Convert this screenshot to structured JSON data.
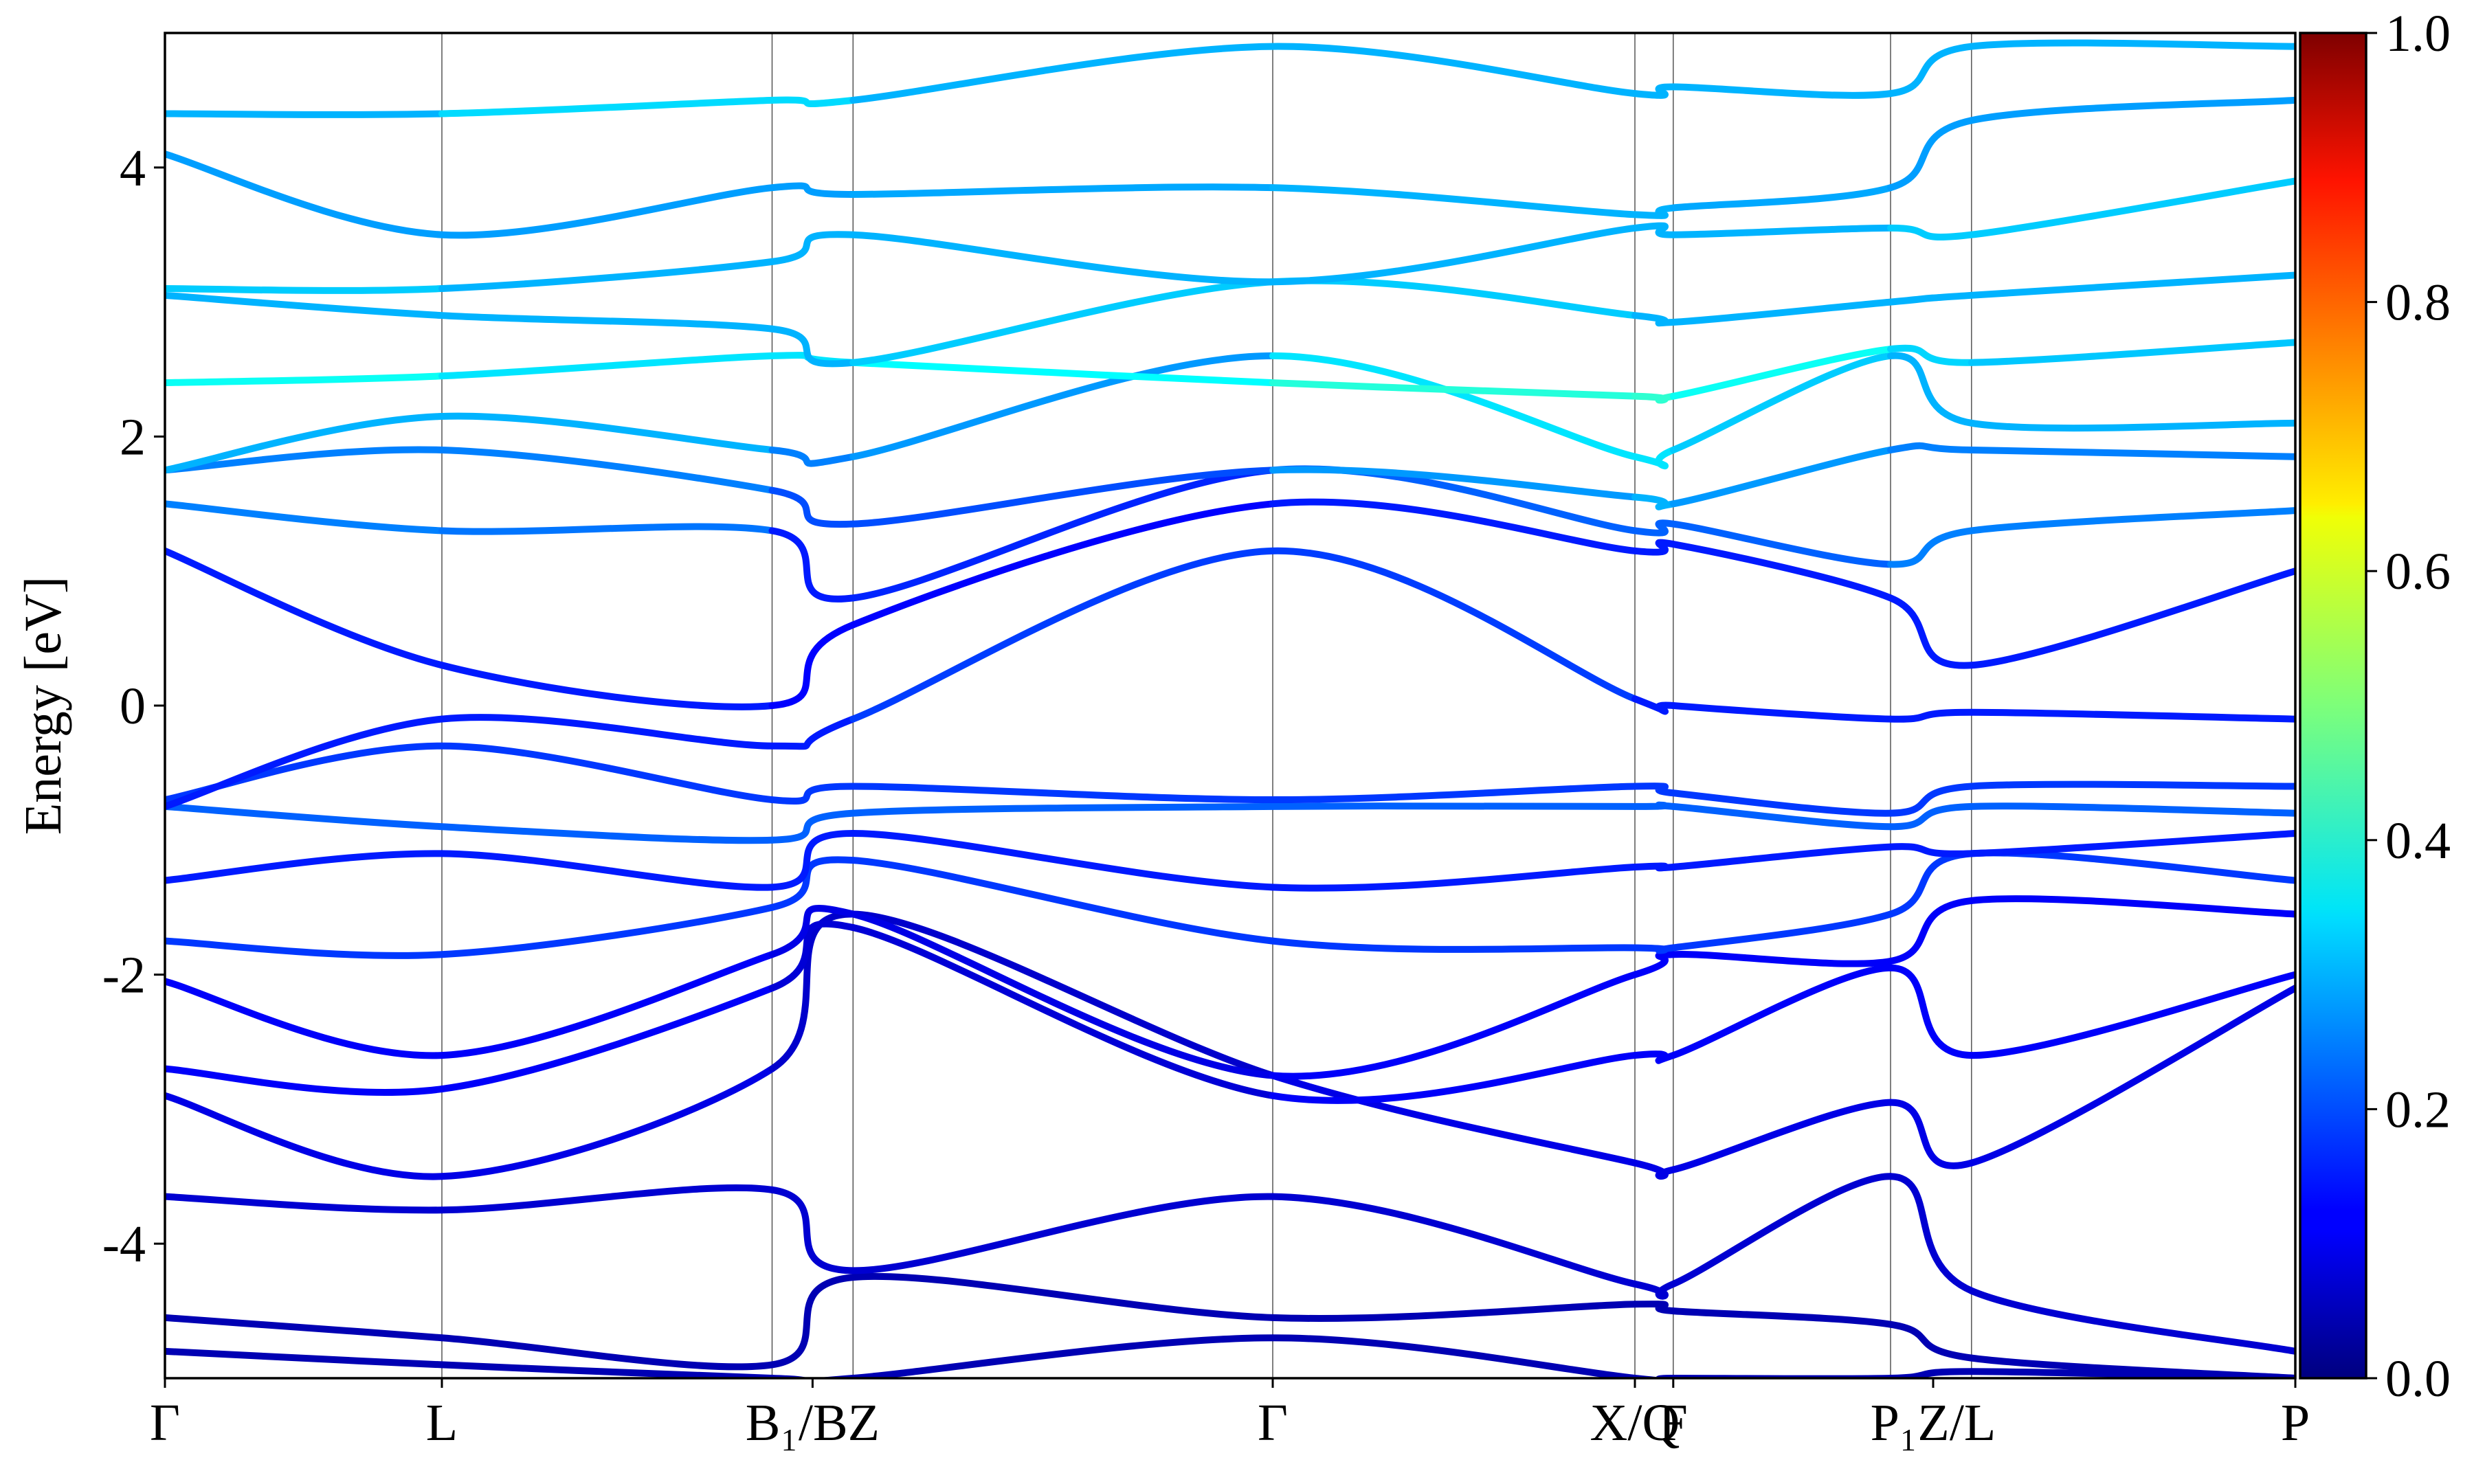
{
  "chart_data": {
    "type": "line",
    "ylabel": "Energy [eV]",
    "ylim": [
      -5,
      5
    ],
    "y_ticks": [
      "-4",
      "-2",
      "0",
      "2",
      "4"
    ],
    "y_tick_values": [
      -4,
      -2,
      0,
      2,
      4
    ],
    "x_ticks": [
      "Γ",
      "L",
      "B₁/BZ",
      "Γ",
      "X/Q",
      "F",
      "P₁Z/L",
      "P"
    ],
    "kpoints": [
      0,
      0.13,
      0.285,
      0.323,
      0.52,
      0.69,
      0.708,
      0.81,
      0.848,
      1.0
    ],
    "grid": "vertical lines at high-symmetry k-points",
    "colorbar": {
      "colormap": "jet",
      "range": [
        0.0,
        1.0
      ],
      "tick_labels": [
        "0.0",
        "0.2",
        "0.4",
        "0.6",
        "0.8",
        "1.0"
      ],
      "tick_values": [
        0.0,
        0.2,
        0.4,
        0.6,
        0.8,
        1.0
      ]
    },
    "series": [
      {
        "x": [
          0,
          0.13,
          0.285,
          0.323,
          0.52,
          0.69,
          0.708,
          0.81,
          0.848,
          1.0
        ],
        "y": [
          -4.55,
          -4.7,
          -4.9,
          -4.25,
          -4.55,
          -4.45,
          -4.5,
          -4.6,
          -4.85,
          -5.0
        ],
        "w": [
          0.05,
          0.05,
          0.05,
          0.05,
          0.05,
          0.05,
          0.05,
          0.05,
          0.05,
          0.05
        ]
      },
      {
        "x": [
          0,
          0.13,
          0.285,
          0.323,
          0.52,
          0.69,
          0.708,
          0.81,
          0.848,
          1.0
        ],
        "y": [
          -3.65,
          -3.75,
          -3.6,
          -4.2,
          -3.65,
          -4.3,
          -4.3,
          -3.5,
          -4.35,
          -4.8
        ],
        "w": [
          0.08,
          0.08,
          0.08,
          0.08,
          0.08,
          0.08,
          0.08,
          0.08,
          0.08,
          0.08
        ]
      },
      {
        "x": [
          0,
          0.13,
          0.285,
          0.323,
          0.52,
          0.69,
          0.708,
          0.81,
          0.848,
          1.0
        ],
        "y": [
          -2.9,
          -3.5,
          -2.7,
          -1.55,
          -2.75,
          -3.4,
          -3.45,
          -2.95,
          -3.4,
          -2.1
        ],
        "w": [
          0.1,
          0.1,
          0.1,
          0.05,
          0.1,
          0.1,
          0.1,
          0.1,
          0.1,
          0.1
        ]
      },
      {
        "x": [
          0,
          0.13,
          0.285,
          0.323,
          0.52,
          0.69,
          0.708,
          0.81,
          0.848,
          1.0
        ],
        "y": [
          -2.7,
          -2.85,
          -2.1,
          -1.65,
          -2.9,
          -2.6,
          -2.6,
          -1.95,
          -2.6,
          -2.0
        ],
        "w": [
          0.12,
          0.12,
          0.12,
          0.05,
          0.12,
          0.12,
          0.12,
          0.12,
          0.12,
          0.12
        ]
      },
      {
        "x": [
          0,
          0.13,
          0.285,
          0.323,
          0.52,
          0.69,
          0.708,
          0.81,
          0.848,
          1.0
        ],
        "y": [
          -2.05,
          -2.6,
          -1.85,
          -1.55,
          -2.75,
          -2.0,
          -1.85,
          -1.9,
          -1.45,
          -1.55
        ],
        "w": [
          0.12,
          0.12,
          0.12,
          0.08,
          0.12,
          0.12,
          0.12,
          0.12,
          0.12,
          0.12
        ]
      },
      {
        "x": [
          0,
          0.13,
          0.285,
          0.323,
          0.52,
          0.69,
          0.708,
          0.81,
          0.848,
          1.0
        ],
        "y": [
          -1.75,
          -1.85,
          -1.5,
          -1.15,
          -1.75,
          -1.8,
          -1.8,
          -1.55,
          -1.1,
          -1.3
        ],
        "w": [
          0.18,
          0.18,
          0.18,
          0.18,
          0.18,
          0.18,
          0.18,
          0.18,
          0.18,
          0.18
        ]
      },
      {
        "x": [
          0,
          0.13,
          0.285,
          0.323,
          0.52,
          0.69,
          0.708,
          0.81,
          0.848,
          1.0
        ],
        "y": [
          -1.3,
          -1.1,
          -1.35,
          -0.95,
          -1.35,
          -1.2,
          -1.2,
          -1.05,
          -1.1,
          -0.95
        ],
        "w": [
          0.15,
          0.15,
          0.15,
          0.15,
          0.15,
          0.15,
          0.15,
          0.15,
          0.15,
          0.15
        ]
      },
      {
        "x": [
          0,
          0.13,
          0.285,
          0.323,
          0.52,
          0.69,
          0.708,
          0.81,
          0.848,
          1.0
        ],
        "y": [
          -0.75,
          -0.9,
          -1.0,
          -0.8,
          -0.75,
          -0.75,
          -0.75,
          -0.9,
          -0.75,
          -0.8
        ],
        "w": [
          0.22,
          0.22,
          0.22,
          0.22,
          0.22,
          0.22,
          0.22,
          0.22,
          0.22,
          0.22
        ]
      },
      {
        "x": [
          0,
          0.13,
          0.285,
          0.323,
          0.52,
          0.69,
          0.708,
          0.81,
          0.848,
          1.0
        ],
        "y": [
          -0.7,
          -0.3,
          -0.7,
          -0.6,
          -0.7,
          -0.6,
          -0.65,
          -0.8,
          -0.6,
          -0.6
        ],
        "w": [
          0.18,
          0.18,
          0.18,
          0.18,
          0.18,
          0.18,
          0.18,
          0.18,
          0.18,
          0.18
        ]
      },
      {
        "x": [
          0,
          0.13,
          0.285,
          0.323,
          0.52,
          0.69,
          0.708,
          0.81,
          0.848,
          1.0
        ],
        "y": [
          -0.75,
          -0.1,
          -0.3,
          -0.1,
          1.15,
          0.05,
          0.0,
          -0.1,
          -0.05,
          -0.1
        ],
        "w": [
          0.15,
          0.15,
          0.15,
          0.15,
          0.22,
          0.15,
          0.15,
          0.15,
          0.15,
          0.15
        ]
      },
      {
        "x": [
          0,
          0.13,
          0.285,
          0.323,
          0.52,
          0.69,
          0.708,
          0.81,
          0.848,
          1.0
        ],
        "y": [
          1.15,
          0.3,
          0.0,
          0.6,
          1.5,
          1.15,
          1.2,
          0.8,
          0.3,
          1.0
        ],
        "w": [
          0.15,
          0.15,
          0.15,
          0.1,
          0.15,
          0.15,
          0.15,
          0.15,
          0.15,
          0.15
        ]
      },
      {
        "x": [
          0,
          0.13,
          0.285,
          0.323,
          0.52,
          0.69,
          0.708,
          0.81,
          0.848,
          1.0
        ],
        "y": [
          1.5,
          1.3,
          1.3,
          0.8,
          1.75,
          1.3,
          1.35,
          1.05,
          1.3,
          1.45
        ],
        "w": [
          0.22,
          0.28,
          0.2,
          0.1,
          0.22,
          0.22,
          0.22,
          0.22,
          0.28,
          0.22
        ]
      },
      {
        "x": [
          0,
          0.13,
          0.285,
          0.323,
          0.52,
          0.69,
          0.708,
          0.81,
          0.848,
          1.0
        ],
        "y": [
          1.75,
          1.9,
          1.6,
          1.35,
          1.75,
          1.55,
          1.5,
          1.9,
          1.9,
          1.85
        ],
        "w": [
          0.25,
          0.25,
          0.25,
          0.15,
          0.25,
          0.3,
          0.3,
          0.25,
          0.25,
          0.25
        ]
      },
      {
        "x": [
          0,
          0.13,
          0.285,
          0.323,
          0.52,
          0.69,
          0.708,
          0.81,
          0.848,
          1.0
        ],
        "y": [
          1.75,
          2.15,
          1.9,
          1.85,
          2.6,
          1.85,
          1.9,
          2.6,
          2.1,
          2.1
        ],
        "w": [
          0.3,
          0.3,
          0.3,
          0.2,
          0.35,
          0.35,
          0.35,
          0.3,
          0.3,
          0.3
        ]
      },
      {
        "x": [
          0,
          0.13,
          0.285,
          0.323,
          0.52,
          0.69,
          0.708,
          0.81,
          0.848,
          1.0
        ],
        "y": [
          2.4,
          2.45,
          2.6,
          2.55,
          2.4,
          2.3,
          2.3,
          2.65,
          2.55,
          2.7
        ],
        "w": [
          0.42,
          0.35,
          0.35,
          0.35,
          0.4,
          0.42,
          0.42,
          0.35,
          0.32,
          0.32
        ]
      },
      {
        "x": [
          0,
          0.13,
          0.285,
          0.323,
          0.52,
          0.69,
          0.708,
          0.81,
          0.848,
          1.0
        ],
        "y": [
          3.05,
          2.9,
          2.8,
          2.55,
          3.15,
          2.9,
          2.85,
          3.0,
          3.05,
          3.2
        ],
        "w": [
          0.3,
          0.3,
          0.3,
          0.3,
          0.35,
          0.3,
          0.3,
          0.3,
          0.3,
          0.3
        ]
      },
      {
        "x": [
          0,
          0.13,
          0.285,
          0.323,
          0.52,
          0.69,
          0.708,
          0.81,
          0.848,
          1.0
        ],
        "y": [
          3.1,
          3.1,
          3.3,
          3.5,
          3.15,
          3.55,
          3.5,
          3.55,
          3.5,
          3.9
        ],
        "w": [
          0.35,
          0.3,
          0.3,
          0.3,
          0.3,
          0.3,
          0.3,
          0.3,
          0.35,
          0.3
        ]
      },
      {
        "x": [
          0,
          0.13,
          0.285,
          0.323,
          0.52,
          0.69,
          0.708,
          0.81,
          0.848,
          1.0
        ],
        "y": [
          4.1,
          3.5,
          3.85,
          3.8,
          3.85,
          3.65,
          3.7,
          3.85,
          4.35,
          4.5
        ],
        "w": [
          0.28,
          0.28,
          0.28,
          0.28,
          0.3,
          0.3,
          0.3,
          0.28,
          0.28,
          0.28
        ]
      },
      {
        "x": [
          0,
          0.13,
          0.285,
          0.323,
          0.52,
          0.69,
          0.708,
          0.81,
          0.848,
          1.0
        ],
        "y": [
          4.4,
          4.4,
          4.5,
          4.5,
          4.9,
          4.55,
          4.6,
          4.55,
          4.9,
          4.9
        ],
        "w": [
          0.3,
          0.3,
          0.38,
          0.3,
          0.3,
          0.3,
          0.3,
          0.3,
          0.3,
          0.3
        ]
      },
      {
        "x": [
          0,
          0.13,
          0.285,
          0.323,
          0.52,
          0.69,
          0.708,
          0.81,
          0.848,
          1.0
        ],
        "y": [
          -4.8,
          -4.9,
          -5.0,
          -5.0,
          -4.7,
          -5.0,
          -5.0,
          -5.0,
          -4.95,
          -5.0
        ],
        "w": [
          0.05,
          0.05,
          0.05,
          0.05,
          0.05,
          0.05,
          0.05,
          0.05,
          0.05,
          0.05
        ]
      }
    ]
  }
}
